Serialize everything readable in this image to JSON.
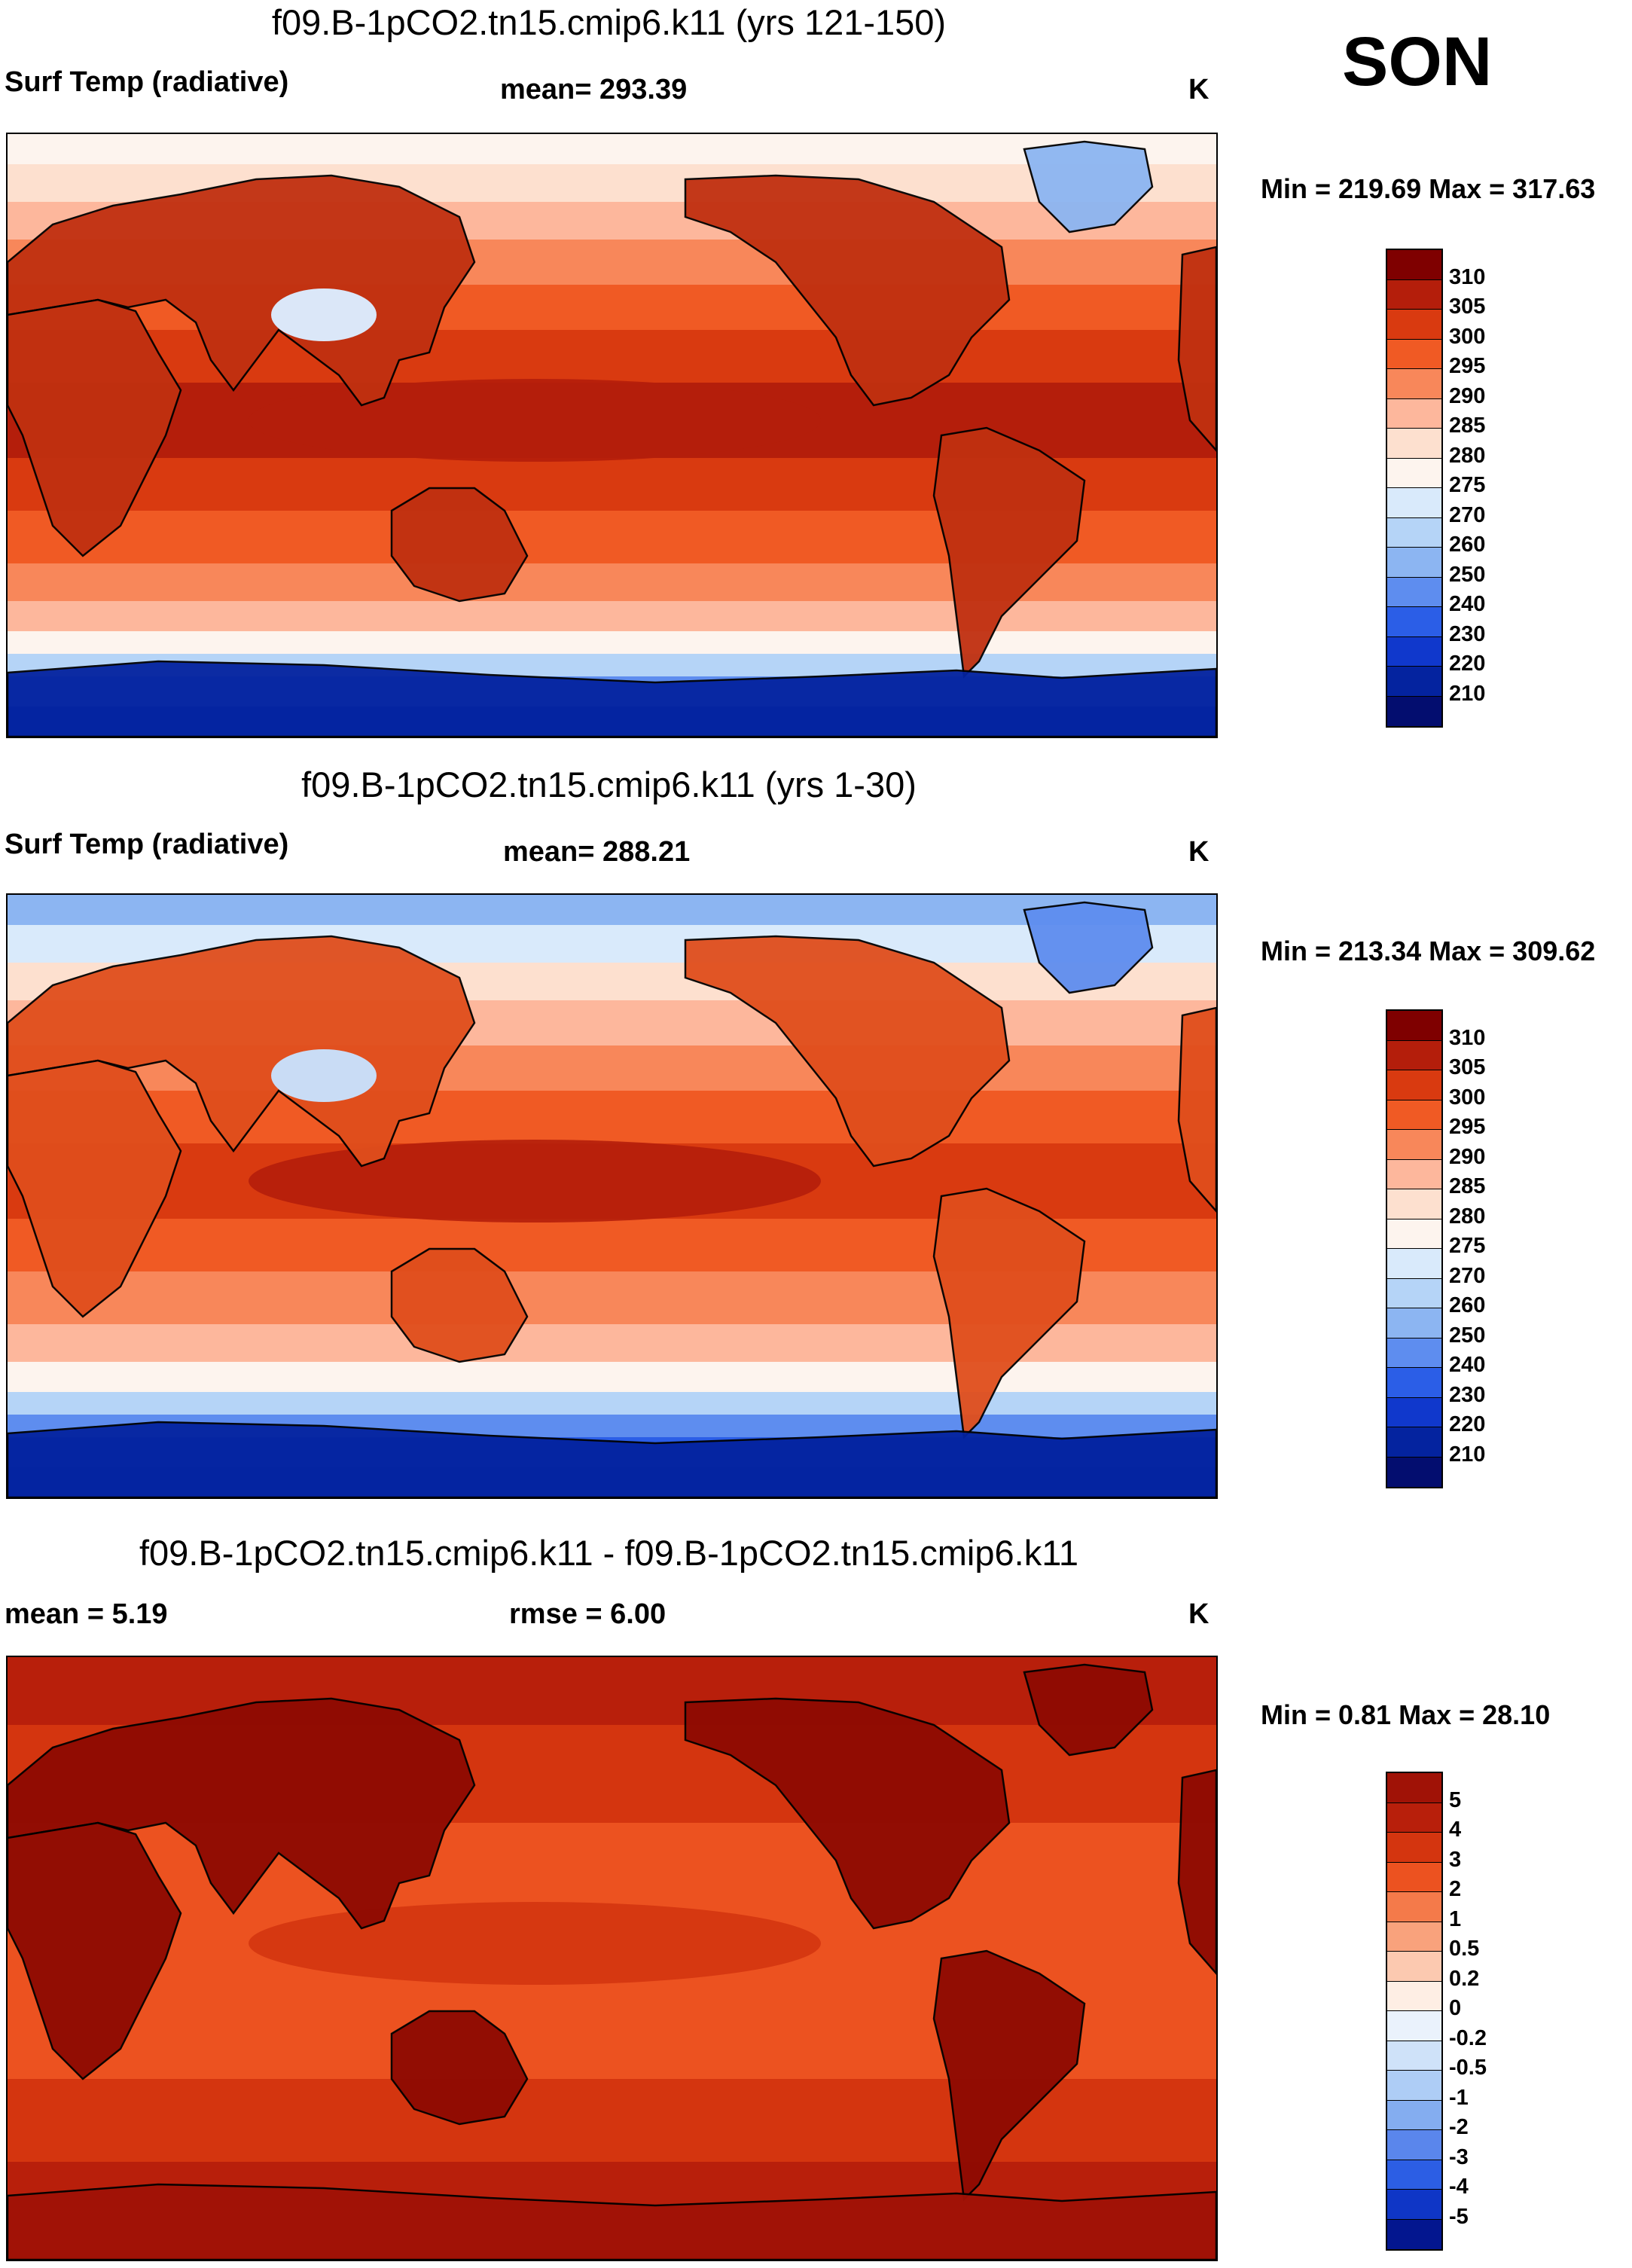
{
  "season": "SON",
  "panels": [
    {
      "title": "f09.B-1pCO2.tn15.cmip6.k11 (yrs 121-150)",
      "field": "Surf Temp (radiative)",
      "stat1": "mean= 293.39",
      "stat2": "",
      "units": "K",
      "minmax": "Min = 219.69 Max = 317.63",
      "levels": [
        "310",
        "305",
        "300",
        "295",
        "290",
        "285",
        "280",
        "275",
        "270",
        "260",
        "250",
        "240",
        "230",
        "220",
        "210"
      ],
      "colors": [
        "#7f0000",
        "#b41e0b",
        "#d93a10",
        "#f05a24",
        "#f8875a",
        "#fdb79c",
        "#fde0cf",
        "#fdf4ee",
        "#d9eafb",
        "#b5d4f7",
        "#8cb5f2",
        "#5e8def",
        "#2b5ee7",
        "#1038cc",
        "#04239f",
        "#030d6f"
      ],
      "land": {
        "shade": "#c03010",
        "cold_patch": "#dbe7f8"
      }
    },
    {
      "title": "f09.B-1pCO2.tn15.cmip6.k11 (yrs 1-30)",
      "field": "Surf Temp (radiative)",
      "stat1": "mean= 288.21",
      "stat2": "",
      "units": "K",
      "minmax": "Min = 213.34 Max = 309.62",
      "levels": [
        "310",
        "305",
        "300",
        "295",
        "290",
        "285",
        "280",
        "275",
        "270",
        "260",
        "250",
        "240",
        "230",
        "220",
        "210"
      ],
      "colors": [
        "#7f0000",
        "#b41e0b",
        "#d93a10",
        "#f05a24",
        "#f8875a",
        "#fdb79c",
        "#fde0cf",
        "#fdf4ee",
        "#d9eafb",
        "#b5d4f7",
        "#8cb5f2",
        "#5e8def",
        "#2b5ee7",
        "#1038cc",
        "#04239f",
        "#030d6f"
      ],
      "land": {
        "shade": "#e04e1c",
        "cold_patch": "#c9dcf5"
      }
    },
    {
      "title": "f09.B-1pCO2.tn15.cmip6.k11 - f09.B-1pCO2.tn15.cmip6.k11",
      "field": "",
      "stat1": "mean =   5.19",
      "stat2": "rmse =   6.00",
      "units": "K",
      "minmax": "Min =   0.81 Max =  28.10",
      "levels": [
        "5",
        "4",
        "3",
        "2",
        "1",
        "0.5",
        "0.2",
        "0",
        "-0.2",
        "-0.5",
        "-1",
        "-2",
        "-3",
        "-4",
        "-5"
      ],
      "colors": [
        "#a01206",
        "#b81f0b",
        "#d4350f",
        "#ec5220",
        "#f47a4a",
        "#f9a27c",
        "#fcc9b0",
        "#feeee4",
        "#eaf2fc",
        "#cfe2f9",
        "#aecdf6",
        "#84adf0",
        "#5a86ec",
        "#2c5ee4",
        "#0f36c6",
        "#03168f"
      ],
      "land": {
        "shade": "#8e0a02",
        "cold_patch": ""
      }
    }
  ]
}
